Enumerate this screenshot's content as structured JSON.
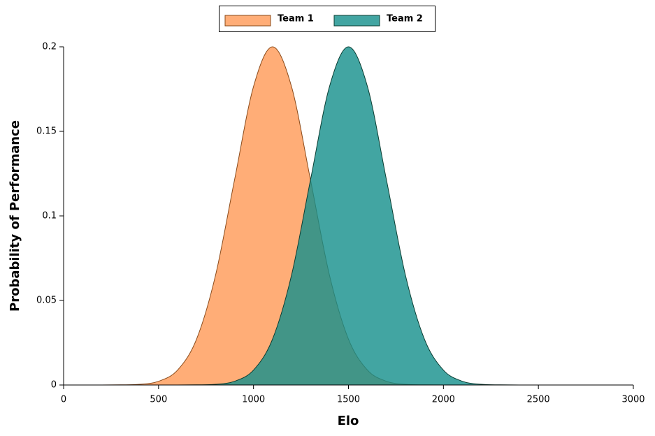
{
  "chart_data": {
    "type": "area",
    "x_label": "Elo",
    "y_label": "Probability of Performance",
    "x": [
      0,
      100,
      200,
      300,
      400,
      500,
      600,
      700,
      800,
      900,
      1000,
      1100,
      1200,
      1300,
      1400,
      1500,
      1600,
      1700,
      1800,
      1900,
      2000,
      2100,
      2200,
      2300,
      2400,
      2500,
      2600,
      2700,
      2800,
      2900
    ],
    "series": [
      {
        "name": "Team 1",
        "color": "#ff9955",
        "values": [
          0,
          0,
          0,
          0.0001,
          0.0004,
          0.0022,
          0.0088,
          0.0271,
          0.0649,
          0.1213,
          0.1765,
          0.2,
          0.1765,
          0.1213,
          0.0649,
          0.0271,
          0.0088,
          0.0022,
          0.0004,
          0.0001,
          0,
          0,
          0,
          0,
          0,
          0,
          0,
          0,
          0,
          0
        ]
      },
      {
        "name": "Team 2",
        "color": "#138f8b",
        "values": [
          0,
          0,
          0,
          0,
          0,
          0,
          0,
          0.0001,
          0.0004,
          0.0022,
          0.0088,
          0.0271,
          0.0649,
          0.1213,
          0.1765,
          0.2,
          0.1765,
          0.1213,
          0.0649,
          0.0271,
          0.0088,
          0.0022,
          0.0004,
          0.0001,
          0,
          0,
          0,
          0,
          0,
          0
        ]
      }
    ],
    "xlim": [
      0,
      3000
    ],
    "xticks": [
      0,
      500,
      1000,
      1500,
      2000,
      2500,
      3000
    ],
    "ylim": [
      0,
      0.2
    ],
    "yticks": [
      0,
      0.05,
      0.1,
      0.15,
      0.2
    ],
    "legend": "top",
    "fill_opacity": 0.8,
    "grid": false
  }
}
